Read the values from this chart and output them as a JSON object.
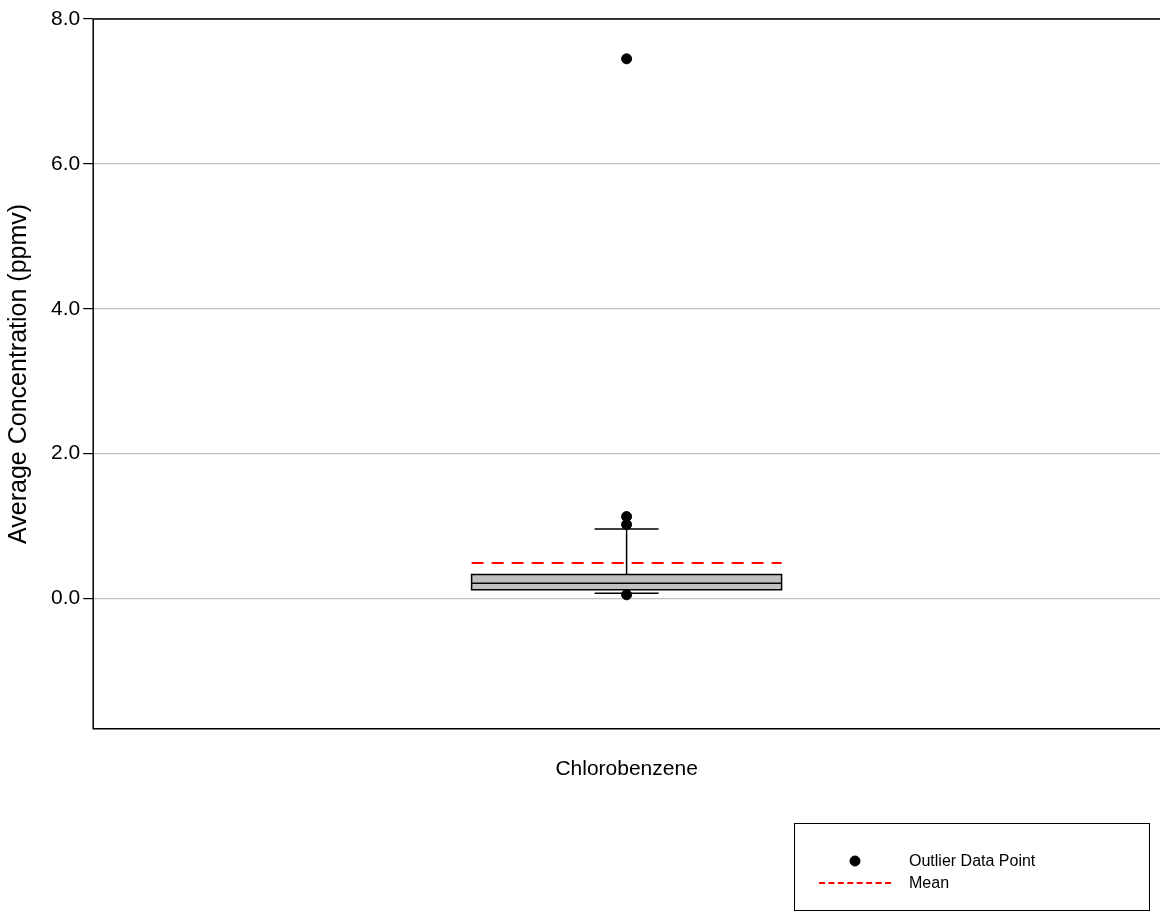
{
  "chart_data": {
    "type": "box",
    "ylabel": "Average Concentration (ppmv)",
    "categories": [
      "Chlorobenzene"
    ],
    "ylim": [
      -1.8,
      8
    ],
    "yticks": [
      {
        "value": 0,
        "label": "0.0"
      },
      {
        "value": 2,
        "label": "2.0"
      },
      {
        "value": 4,
        "label": "4.0"
      },
      {
        "value": 6,
        "label": "6.0"
      },
      {
        "value": 8,
        "label": "8.0"
      }
    ],
    "grid": "y",
    "legend": "bottom right",
    "series": [
      {
        "type": "box",
        "color": "#c0c0c0",
        "boxes": [
          {
            "low": 0.07,
            "q1": 0.12,
            "median": 0.21,
            "q3": 0.33,
            "high": 0.96
          }
        ]
      },
      {
        "type": "scatter",
        "name": "Outlier Data Point",
        "color": "#000000",
        "marker": "circle",
        "x": [
          "Chlorobenzene",
          "Chlorobenzene",
          "Chlorobenzene",
          "Chlorobenzene"
        ],
        "values": [
          7.45,
          1.13,
          1.02,
          0.05
        ]
      }
    ],
    "ref_lines": [
      {
        "axis": "y",
        "value": 0.49,
        "label": "Mean",
        "color": "#ff0000",
        "line_style": "dashed"
      }
    ]
  }
}
